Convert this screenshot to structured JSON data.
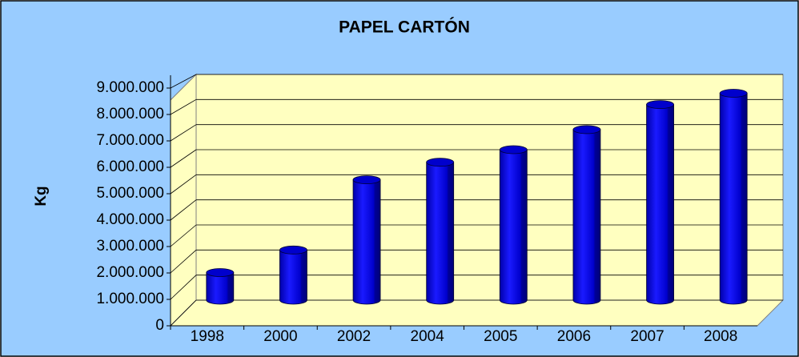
{
  "chart_data": {
    "type": "bar3d",
    "title": "PAPEL CARTÓN",
    "y_label": "Kg",
    "categories": [
      "1998",
      "2000",
      "2002",
      "2004",
      "2005",
      "2006",
      "2007",
      "2008"
    ],
    "values": [
      1100000,
      2000000,
      4800000,
      5500000,
      6000000,
      6800000,
      7800000,
      8250000
    ],
    "color": "#0000cc",
    "ylim": [
      0,
      9000000
    ],
    "yticks": [
      0,
      {
        "value": 1000000,
        "label": "1.000.000"
      },
      {
        "value": 2000000,
        "label": "2.000.000"
      },
      {
        "value": 3000000,
        "label": "3.000.000"
      },
      {
        "value": 4000000,
        "label": "4.000.000"
      },
      {
        "value": 5000000,
        "label": "5.000.000"
      },
      {
        "value": 6000000,
        "label": "6.000.000"
      },
      {
        "value": 7000000,
        "label": "7.000.000"
      },
      {
        "value": 8000000,
        "label": "8.000.000"
      },
      {
        "value": 9000000,
        "label": "9.000.000"
      }
    ],
    "grid": true
  }
}
